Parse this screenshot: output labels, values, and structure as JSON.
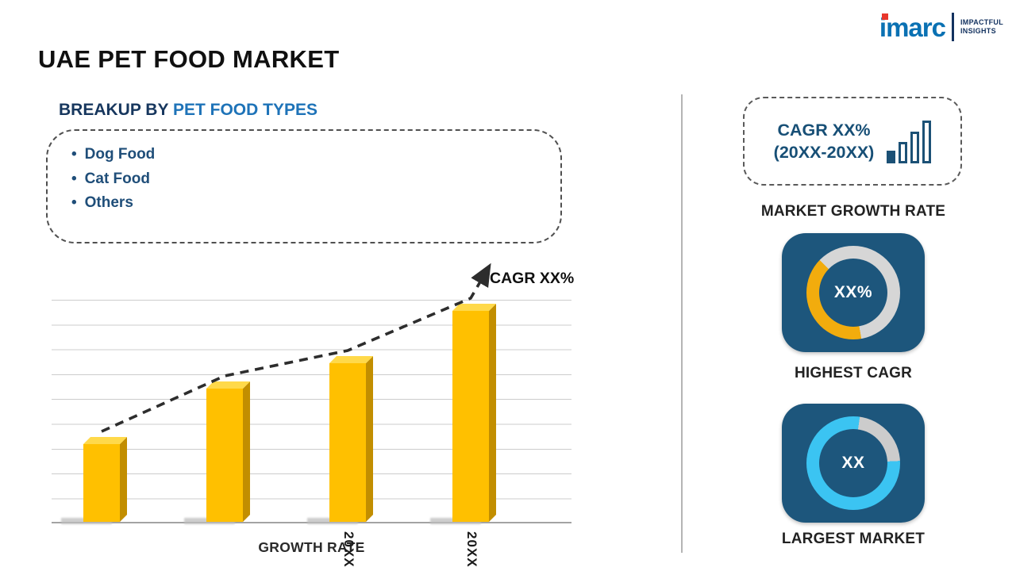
{
  "header": {
    "title": "UAE PET FOOD MARKET"
  },
  "logo": {
    "brand": "imarc",
    "tagline_line1": "IMPACTFUL",
    "tagline_line2": "INSIGHTS"
  },
  "breakup": {
    "heading_prefix": "BREAKUP BY ",
    "heading_highlight": "PET FOOD TYPES",
    "items": [
      "Dog Food",
      "Cat Food",
      "Others"
    ]
  },
  "chart_data": {
    "type": "bar",
    "title": "",
    "categories": [
      "",
      "",
      "20XX",
      "20XX"
    ],
    "values": [
      28,
      48,
      57,
      76
    ],
    "ylim": [
      0,
      80
    ],
    "xlabel": "GROWTH RATE",
    "ylabel": "",
    "bar_color": "#FFC000",
    "grid": true,
    "trend_label": "CAGR XX%",
    "trend_style": "dashed-arrow"
  },
  "right_panel": {
    "cagr_box": {
      "line1": "CAGR XX%",
      "line2": "(20XX-20XX)",
      "icon": "bar-chart-icon"
    },
    "market_growth_label": "MARKET GROWTH RATE",
    "highest_cagr": {
      "value": "XX%",
      "label": "HIGHEST CAGR",
      "ring": {
        "from_deg": 170,
        "segments": [
          {
            "color": "#F2AC0D",
            "pct": 40
          },
          {
            "color": "#D6D6D6",
            "pct": 60
          }
        ]
      }
    },
    "largest_market": {
      "value": "XX",
      "label": "LARGEST MARKET",
      "ring": {
        "from_deg": 8,
        "segments": [
          {
            "color": "#CCCCCC",
            "pct": 22
          },
          {
            "color": "#3BC4F2",
            "pct": 78
          }
        ]
      }
    }
  },
  "colors": {
    "bar": "#FFC000",
    "navy_card": "#1D567C",
    "heading_dark": "#17375E",
    "heading_highlight": "#1E73B8",
    "cyan_ring": "#3BC4F2",
    "yellow_ring": "#F2AC0D"
  }
}
